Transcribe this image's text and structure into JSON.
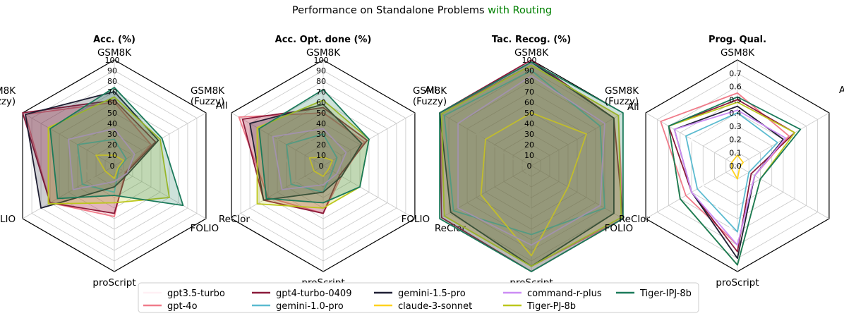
{
  "figure": {
    "title_main": "Performance on Standalone Problems ",
    "title_highlight": "with Routing",
    "title_highlight_color": "#008000"
  },
  "legend": [
    {
      "name": "gpt3.5-turbo",
      "color": "#fff0f5"
    },
    {
      "name": "gpt-4o",
      "color": "#f07c8a"
    },
    {
      "name": "gpt4-turbo-0409",
      "color": "#8b1a3a"
    },
    {
      "name": "gemini-1.0-pro",
      "color": "#5bbbd0"
    },
    {
      "name": "gemini-1.5-pro",
      "color": "#1f1f33"
    },
    {
      "name": "claude-3-sonnet",
      "color": "#ffd21f"
    },
    {
      "name": "command-r-plus",
      "color": "#cc8cf5"
    },
    {
      "name": "Tiger-PJ-8b",
      "color": "#bcc71c"
    },
    {
      "name": "Tiger-IPJ-8b",
      "color": "#1b7a5a"
    }
  ],
  "chart_data": [
    {
      "type": "radar",
      "title": "Acc. (%)",
      "axes": [
        "GSM8K",
        "All",
        "ReClor",
        "proScript",
        "FOLIO",
        "GSM8K\n(Fuzzy)"
      ],
      "rmax": 100,
      "ticks": [
        0,
        10,
        20,
        30,
        40,
        50,
        60,
        70,
        80,
        90,
        100
      ],
      "grid": true,
      "series": [
        {
          "name": "gpt3.5-turbo",
          "values": [
            30,
            20,
            10,
            5,
            25,
            50
          ],
          "fill": false
        },
        {
          "name": "gpt-4o",
          "values": [
            60,
            40,
            12,
            48,
            70,
            97
          ],
          "fill": true
        },
        {
          "name": "gpt4-turbo-0409",
          "values": [
            62,
            45,
            13,
            45,
            70,
            100
          ],
          "fill": true
        },
        {
          "name": "gemini-1.0-pro",
          "values": [
            25,
            13,
            5,
            25,
            35,
            40
          ],
          "fill": false
        },
        {
          "name": "gemini-1.5-pro",
          "values": [
            70,
            48,
            15,
            20,
            80,
            97
          ],
          "fill": true
        },
        {
          "name": "claude-3-sonnet",
          "values": [
            10,
            10,
            4,
            12,
            10,
            20
          ],
          "fill": false
        },
        {
          "name": "command-r-plus",
          "values": [
            35,
            22,
            14,
            15,
            45,
            50
          ],
          "fill": false
        },
        {
          "name": "Tiger-PJ-8b",
          "values": [
            65,
            50,
            60,
            35,
            72,
            72
          ],
          "fill": true
        },
        {
          "name": "Tiger-IPJ-8b",
          "values": [
            74,
            52,
            75,
            28,
            62,
            70
          ],
          "fill": true
        }
      ]
    },
    {
      "type": "radar",
      "title": "Acc. Opt. done (%)",
      "axes": [
        "GSM8K",
        "All",
        "ReClor",
        "proScript",
        "FOLIO",
        "GSM8K\n(Fuzzy)"
      ],
      "rmax": 100,
      "ticks": [
        0,
        10,
        20,
        30,
        40,
        50,
        60,
        70,
        80,
        90,
        100
      ],
      "grid": true,
      "series": [
        {
          "name": "gpt3.5-turbo",
          "values": [
            22,
            18,
            5,
            5,
            30,
            50
          ],
          "fill": false
        },
        {
          "name": "gpt-4o",
          "values": [
            50,
            45,
            20,
            45,
            60,
            92
          ],
          "fill": true
        },
        {
          "name": "gpt4-turbo-0409",
          "values": [
            55,
            48,
            18,
            45,
            65,
            88
          ],
          "fill": true
        },
        {
          "name": "gemini-1.0-pro",
          "values": [
            30,
            15,
            10,
            25,
            35,
            40
          ],
          "fill": false
        },
        {
          "name": "gemini-1.5-pro",
          "values": [
            58,
            42,
            20,
            25,
            65,
            80
          ],
          "fill": true
        },
        {
          "name": "claude-3-sonnet",
          "values": [
            8,
            10,
            6,
            10,
            10,
            15
          ],
          "fill": false
        },
        {
          "name": "command-r-plus",
          "values": [
            35,
            25,
            15,
            18,
            45,
            55
          ],
          "fill": false
        },
        {
          "name": "Tiger-PJ-8b",
          "values": [
            62,
            50,
            40,
            40,
            72,
            72
          ],
          "fill": true
        },
        {
          "name": "Tiger-IPJ-8b",
          "values": [
            72,
            50,
            40,
            35,
            62,
            70
          ],
          "fill": true
        }
      ]
    },
    {
      "type": "radar",
      "title": "Tac. Recog. (%)",
      "axes": [
        "GSM8K",
        "All",
        "ReClor",
        "proScript",
        "FOLIO",
        "GSM8K\n(Fuzzy)"
      ],
      "rmax": 100,
      "ticks": [
        0,
        10,
        20,
        30,
        40,
        50,
        60,
        70,
        80,
        90,
        100
      ],
      "grid": true,
      "series": [
        {
          "name": "gpt3.5-turbo",
          "values": [
            70,
            60,
            40,
            45,
            5,
            60
          ],
          "fill": false
        },
        {
          "name": "gpt-4o",
          "values": [
            95,
            95,
            100,
            95,
            95,
            100
          ],
          "fill": true
        },
        {
          "name": "gpt4-turbo-0409",
          "values": [
            100,
            90,
            100,
            100,
            98,
            100
          ],
          "fill": true
        },
        {
          "name": "gemini-1.0-pro",
          "values": [
            90,
            75,
            80,
            65,
            85,
            95
          ],
          "fill": false
        },
        {
          "name": "gemini-1.5-pro",
          "values": [
            98,
            90,
            90,
            95,
            88,
            100
          ],
          "fill": true
        },
        {
          "name": "claude-3-sonnet",
          "values": [
            50,
            60,
            40,
            85,
            55,
            50
          ],
          "fill": false
        },
        {
          "name": "command-r-plus",
          "values": [
            85,
            80,
            75,
            75,
            80,
            80
          ],
          "fill": false
        },
        {
          "name": "Tiger-PJ-8b",
          "values": [
            95,
            95,
            98,
            95,
            95,
            98
          ],
          "fill": true
        },
        {
          "name": "Tiger-IPJ-8b",
          "values": [
            98,
            100,
            100,
            100,
            100,
            100
          ],
          "fill": true
        }
      ]
    },
    {
      "type": "radar",
      "title": "Prog. Qual.",
      "axes": [
        "GSM8K",
        "All",
        "ReClor",
        "proScript",
        "FOLIO",
        "GSM8K\n(Fuzzy)"
      ],
      "rmax": 0.8,
      "ticks": [
        0.0,
        0.1,
        0.2,
        0.3,
        0.4,
        0.5,
        0.6,
        0.7
      ],
      "grid": true,
      "series": [
        {
          "name": "gpt3.5-turbo",
          "values": [
            0.35,
            0.35,
            0.1,
            0.55,
            0.3,
            0.4
          ],
          "fill": false
        },
        {
          "name": "gpt-4o",
          "values": [
            0.55,
            0.45,
            0.15,
            0.6,
            0.45,
            0.67
          ],
          "fill": false
        },
        {
          "name": "gpt4-turbo-0409",
          "values": [
            0.5,
            0.5,
            0.12,
            0.65,
            0.4,
            0.6
          ],
          "fill": false
        },
        {
          "name": "gemini-1.0-pro",
          "values": [
            0.4,
            0.35,
            0.1,
            0.5,
            0.35,
            0.45
          ],
          "fill": false
        },
        {
          "name": "gemini-1.5-pro",
          "values": [
            0.45,
            0.4,
            0.15,
            0.7,
            0.4,
            0.55
          ],
          "fill": false
        },
        {
          "name": "claude-3-sonnet",
          "values": [
            0.08,
            0.05,
            0.02,
            0.1,
            0.05,
            0.05
          ],
          "fill": false
        },
        {
          "name": "command-r-plus",
          "values": [
            0.42,
            0.42,
            0.15,
            0.6,
            0.4,
            0.55
          ],
          "fill": false
        },
        {
          "name": "Tiger-PJ-8b",
          "values": [
            0.48,
            0.5,
            0.2,
            0.75,
            0.5,
            0.6
          ],
          "fill": false
        },
        {
          "name": "Tiger-IPJ-8b",
          "values": [
            0.52,
            0.55,
            0.2,
            0.75,
            0.5,
            0.6
          ],
          "fill": false
        }
      ]
    }
  ]
}
